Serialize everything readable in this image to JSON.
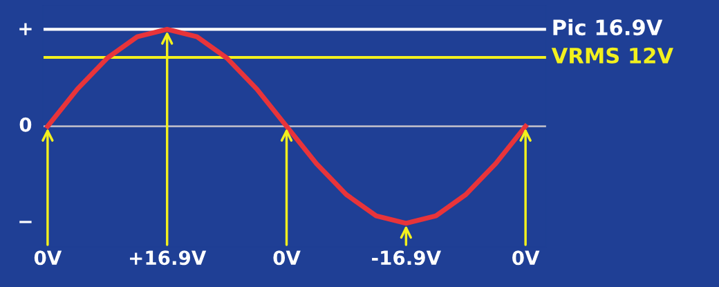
{
  "chart_data": {
    "type": "line",
    "categories": [
      "0V",
      null,
      null,
      null,
      "+16.9V",
      null,
      null,
      null,
      "0V",
      null,
      null,
      null,
      "-16.9V",
      null,
      null,
      null,
      "0V"
    ],
    "series": [
      {
        "color": "#e8343a",
        "values": [
          0,
          6.5,
          11.9,
          15.6,
          16.9,
          15.6,
          11.9,
          6.5,
          0,
          -6.5,
          -11.9,
          -15.6,
          -16.9,
          -15.6,
          -11.9,
          -6.5,
          0
        ]
      }
    ],
    "ylim": [
      -21,
      21
    ],
    "annotations": [
      "+",
      "0",
      "−"
    ],
    "ref_lines": [
      {
        "axis": "y",
        "value": 16.9,
        "label": "Pic 16.9V",
        "color": "#ffffff"
      },
      {
        "axis": "y",
        "value": 12,
        "label": "VRMS 12V",
        "color": "#f2f01e"
      },
      {
        "axis": "y",
        "value": 0,
        "color": "#b8b8c8"
      }
    ],
    "grid": false,
    "marker": "none",
    "line_style": "solid"
  }
}
